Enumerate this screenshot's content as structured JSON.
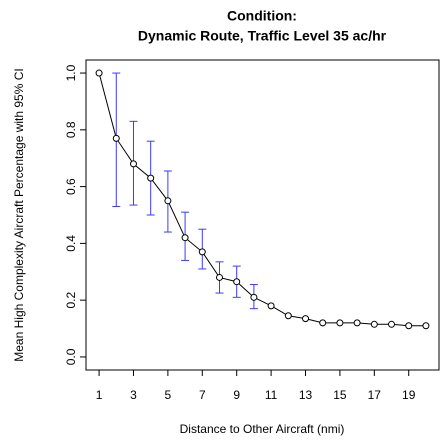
{
  "chart_data": {
    "type": "line",
    "title": "Condition:",
    "subtitle": "Dynamic Route, Traffic Level 35 ac/hr",
    "x_label": "Distance to Other Aircraft (nmi)",
    "y_label": "Mean High Complexity Aircraft Percentage with 95% CI",
    "x": [
      1,
      2,
      3,
      4,
      5,
      6,
      7,
      8,
      9,
      10,
      11,
      12,
      13,
      14,
      15,
      16,
      17,
      18,
      19,
      20
    ],
    "series": [
      {
        "color": "#000000",
        "error_color": "#3a3aff",
        "values": [
          1.0,
          0.77,
          0.68,
          0.63,
          0.55,
          0.42,
          0.37,
          0.28,
          0.265,
          0.21,
          0.18,
          0.145,
          0.135,
          0.12,
          0.12,
          0.12,
          0.115,
          0.115,
          0.11,
          0.11
        ],
        "ci_lower": [
          null,
          0.53,
          0.535,
          0.5,
          0.44,
          0.34,
          0.31,
          0.225,
          0.21,
          0.17,
          null,
          null,
          null,
          null,
          null,
          null,
          null,
          null,
          null,
          null
        ],
        "ci_upper": [
          null,
          1.0,
          0.83,
          0.76,
          0.655,
          0.51,
          0.45,
          0.335,
          0.32,
          0.255,
          null,
          null,
          null,
          null,
          null,
          null,
          null,
          null,
          null,
          null
        ]
      }
    ],
    "xlim": [
      0.24,
      20.76
    ],
    "ylim": [
      -0.046,
      1.046
    ],
    "xticks": [
      1,
      3,
      5,
      7,
      9,
      11,
      13,
      15,
      17,
      19
    ],
    "yticks": [
      {
        "value": 0,
        "label": "0.0"
      },
      0.2,
      0.4,
      0.6,
      0.8,
      {
        "value": 1,
        "label": "1.0"
      }
    ]
  }
}
